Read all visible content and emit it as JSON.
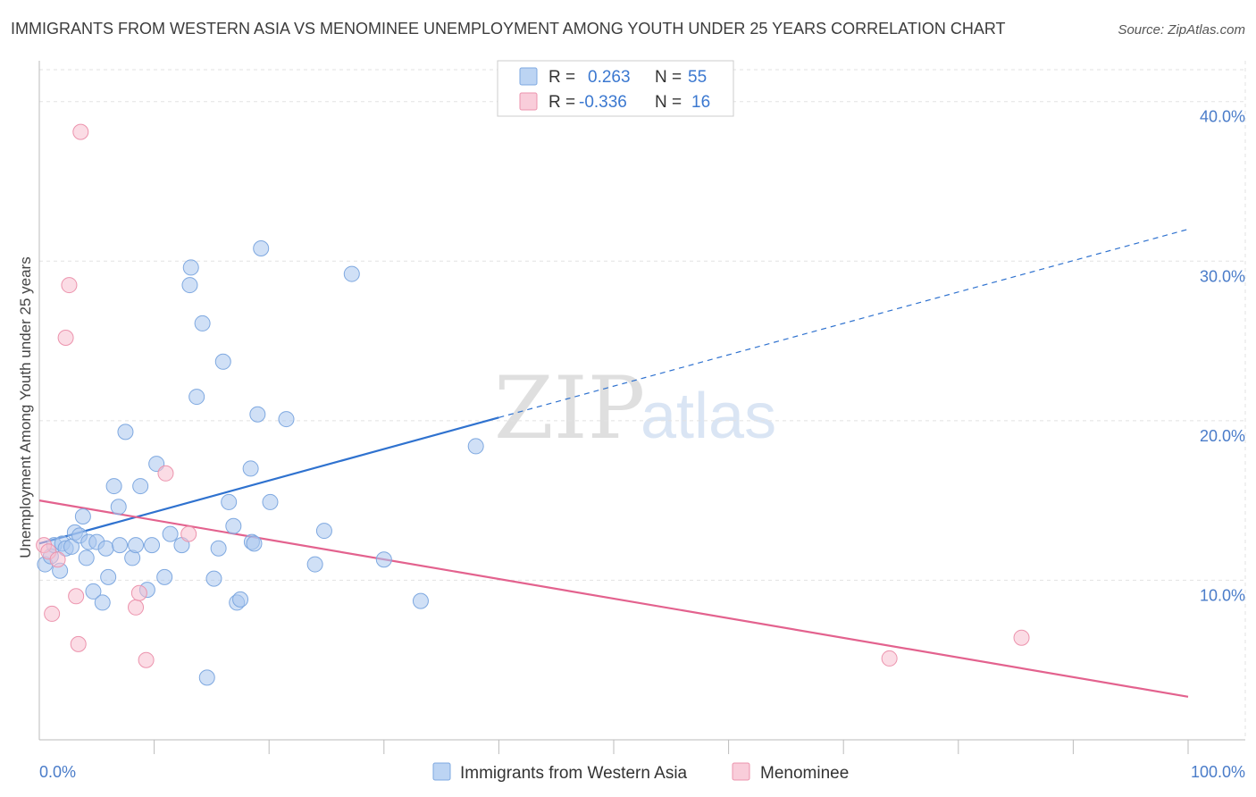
{
  "chart_data": {
    "type": "scatter",
    "title": "IMMIGRANTS FROM WESTERN ASIA VS MENOMINEE UNEMPLOYMENT AMONG YOUTH UNDER 25 YEARS CORRELATION CHART",
    "source": "Source: ZipAtlas.com",
    "ylabel": "Unemployment Among Youth under 25 years",
    "xlim": [
      0,
      100
    ],
    "ylim": [
      0,
      42
    ],
    "x_tick_labels": [
      "0.0%",
      "100.0%"
    ],
    "y_ticks": [
      {
        "value": 10,
        "label": "10.0%"
      },
      {
        "value": 20,
        "label": "20.0%"
      },
      {
        "value": 30,
        "label": "30.0%"
      },
      {
        "value": 40,
        "label": "40.0%"
      }
    ],
    "watermark": {
      "part1": "ZIP",
      "part2": "atlas"
    },
    "legend": {
      "rows": [
        {
          "r_label": "R =",
          "r_value": "0.263",
          "n_label": "N =",
          "n_value": "55"
        },
        {
          "r_label": "R =",
          "r_value": "-0.336",
          "n_label": "N =",
          "n_value": "16"
        }
      ]
    },
    "series": [
      {
        "name": "Immigrants from Western Asia",
        "color": "#a9c7ee",
        "stroke": "#7ea8e0",
        "line_color": "#2f72cf",
        "trend": {
          "x0": 0,
          "y0": 12.3,
          "x1": 40,
          "y1": 20.2,
          "dash_to_x": 100,
          "dash_to_y": 32.0
        },
        "points": [
          [
            0.5,
            11.0
          ],
          [
            1.0,
            11.5
          ],
          [
            1.3,
            12.2
          ],
          [
            1.8,
            10.6
          ],
          [
            2.0,
            12.3
          ],
          [
            2.3,
            12.0
          ],
          [
            2.8,
            12.1
          ],
          [
            3.1,
            13.0
          ],
          [
            3.5,
            12.8
          ],
          [
            3.8,
            14.0
          ],
          [
            4.1,
            11.4
          ],
          [
            4.3,
            12.4
          ],
          [
            4.7,
            9.3
          ],
          [
            5.0,
            12.4
          ],
          [
            5.5,
            8.6
          ],
          [
            5.8,
            12.0
          ],
          [
            6.0,
            10.2
          ],
          [
            6.5,
            15.9
          ],
          [
            6.9,
            14.6
          ],
          [
            7.0,
            12.2
          ],
          [
            7.5,
            19.3
          ],
          [
            8.1,
            11.4
          ],
          [
            8.4,
            12.2
          ],
          [
            8.8,
            15.9
          ],
          [
            9.4,
            9.4
          ],
          [
            9.8,
            12.2
          ],
          [
            10.2,
            17.3
          ],
          [
            10.9,
            10.2
          ],
          [
            11.4,
            12.9
          ],
          [
            12.4,
            12.2
          ],
          [
            13.1,
            28.5
          ],
          [
            13.2,
            29.6
          ],
          [
            13.7,
            21.5
          ],
          [
            14.2,
            26.1
          ],
          [
            14.6,
            3.9
          ],
          [
            15.2,
            10.1
          ],
          [
            15.6,
            12.0
          ],
          [
            16.0,
            23.7
          ],
          [
            16.5,
            14.9
          ],
          [
            16.9,
            13.4
          ],
          [
            17.2,
            8.6
          ],
          [
            17.5,
            8.8
          ],
          [
            18.5,
            12.4
          ],
          [
            18.4,
            17.0
          ],
          [
            18.7,
            12.3
          ],
          [
            19.0,
            20.4
          ],
          [
            19.3,
            30.8
          ],
          [
            20.1,
            14.9
          ],
          [
            21.5,
            20.1
          ],
          [
            24.0,
            11.0
          ],
          [
            24.8,
            13.1
          ],
          [
            27.2,
            29.2
          ],
          [
            30.0,
            11.3
          ],
          [
            33.2,
            8.7
          ],
          [
            38.0,
            18.4
          ]
        ]
      },
      {
        "name": "Menominee",
        "color": "#f7bfcf",
        "stroke": "#ec93ad",
        "line_color": "#e3628e",
        "trend": {
          "x0": 0,
          "y0": 15.0,
          "x1": 100,
          "y1": 2.7
        },
        "points": [
          [
            0.4,
            12.2
          ],
          [
            0.8,
            11.8
          ],
          [
            1.1,
            7.9
          ],
          [
            1.6,
            11.3
          ],
          [
            2.3,
            25.2
          ],
          [
            2.6,
            28.5
          ],
          [
            3.2,
            9.0
          ],
          [
            3.4,
            6.0
          ],
          [
            3.6,
            38.1
          ],
          [
            8.4,
            8.3
          ],
          [
            8.7,
            9.2
          ],
          [
            9.3,
            5.0
          ],
          [
            11.0,
            16.7
          ],
          [
            13.0,
            12.9
          ],
          [
            74.0,
            5.1
          ],
          [
            85.5,
            6.4
          ]
        ]
      }
    ]
  }
}
